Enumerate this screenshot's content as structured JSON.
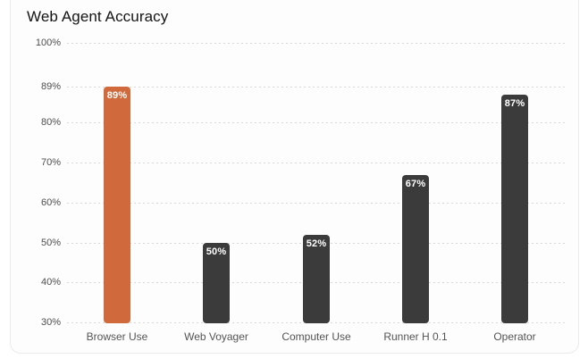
{
  "title": "Web Agent Accuracy",
  "chart_data": {
    "type": "bar",
    "title": "Web Agent Accuracy",
    "categories": [
      "Browser Use",
      "Web Voyager",
      "Computer Use",
      "Runner H 0.1",
      "Operator"
    ],
    "values": [
      89,
      50,
      52,
      67,
      87
    ],
    "value_labels": [
      "89%",
      "50%",
      "52%",
      "67%",
      "87%"
    ],
    "xlabel": "",
    "ylabel": "",
    "ylim": [
      30,
      100
    ],
    "y_ticks": [
      100,
      89,
      80,
      70,
      60,
      50,
      40,
      30
    ],
    "y_tick_labels": [
      "100%",
      "89%",
      "80%",
      "70%",
      "60%",
      "50%",
      "40%",
      "30%"
    ],
    "grid": "horizontal-dotted",
    "legend": "none",
    "colors": {
      "highlight_bar": "#d0693c",
      "default_bar": "#3b3b3b",
      "value_label_text": "#ffffff",
      "gridline": "#d8d8d8",
      "axis_text": "#4d4d4d",
      "title_text": "#141414",
      "card_background": "#fdfdfd",
      "card_border": "#ebebeb"
    },
    "bar_colors": [
      "#d0693c",
      "#3b3b3b",
      "#3b3b3b",
      "#3b3b3b",
      "#3b3b3b"
    ]
  }
}
